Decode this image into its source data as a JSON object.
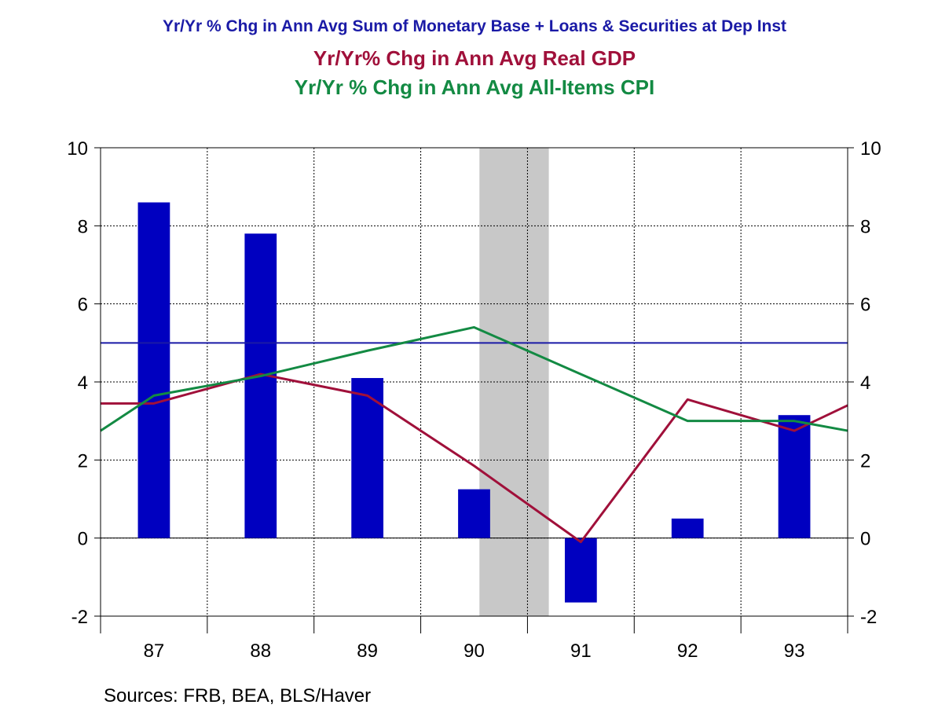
{
  "titles": {
    "line1": "Yr/Yr % Chg in Ann Avg Sum of Monetary Base + Loans & Securities at Dep Inst",
    "line2": "Yr/Yr% Chg in Ann Avg Real GDP",
    "line3": "Yr/Yr % Chg in Ann Avg All-Items CPI"
  },
  "source_note": "Sources:  FRB, BEA, BLS/Haver",
  "colors": {
    "line1": "#1a1aa6",
    "line2": "#a0103a",
    "line3": "#138a43",
    "bars": "#0000c0",
    "reference_line": "#1a1aa6",
    "recession": "#c8c8c8"
  },
  "chart_data": {
    "type": "bar",
    "x_tick_labels": [
      "87",
      "88",
      "89",
      "90",
      "91",
      "92",
      "93"
    ],
    "y_tick_labels": [
      "10",
      "8",
      "6",
      "4",
      "2",
      "0",
      "-2"
    ],
    "ylim": [
      -2,
      10
    ],
    "y_ticks": [
      -2,
      0,
      2,
      4,
      6,
      8,
      10
    ],
    "xlim": [
      1987.0,
      1994.0
    ],
    "grid": true,
    "bars": {
      "x": [
        1987.5,
        1988.5,
        1989.5,
        1990.5,
        1991.5,
        1992.5,
        1993.5
      ],
      "values": [
        8.6,
        7.8,
        4.1,
        1.25,
        -1.65,
        0.5,
        3.15
      ]
    },
    "reference_line": {
      "y": 5.0
    },
    "recession_shading": {
      "x_start": 1990.55,
      "x_end": 1991.2
    },
    "series": [
      {
        "x": [
          1987.0,
          1987.5,
          1988.5,
          1989.5,
          1990.5,
          1991.5,
          1992.5,
          1993.5,
          1994.0
        ],
        "values": [
          3.45,
          3.45,
          4.2,
          3.65,
          1.85,
          -0.1,
          3.55,
          2.75,
          3.4
        ]
      },
      {
        "x": [
          1987.0,
          1987.5,
          1988.5,
          1989.5,
          1990.5,
          1991.5,
          1992.5,
          1993.5,
          1994.0
        ],
        "values": [
          2.75,
          3.65,
          4.15,
          4.8,
          5.4,
          4.2,
          3.0,
          3.0,
          2.75
        ]
      }
    ]
  }
}
